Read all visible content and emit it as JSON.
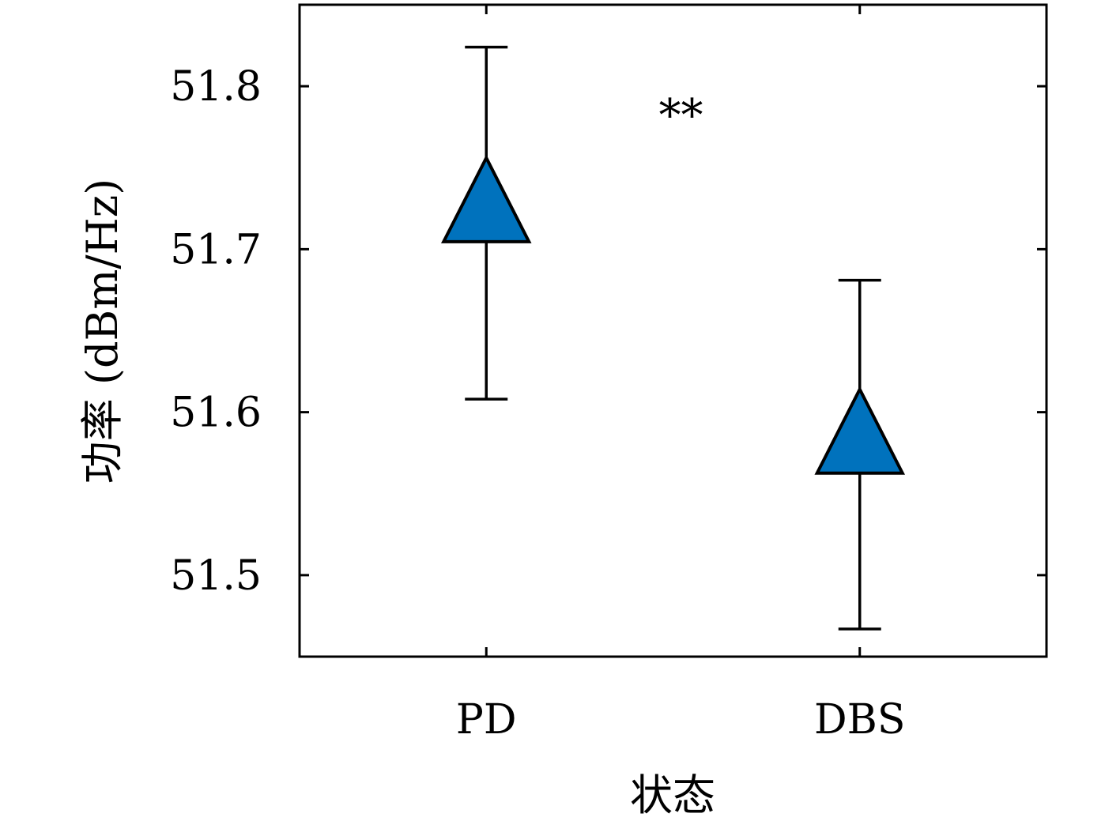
{
  "chart_data": {
    "type": "scatter",
    "categories": [
      "PD",
      "DBS"
    ],
    "series": [
      {
        "values": [
          51.725,
          51.583
        ],
        "error_low": [
          51.608,
          51.467
        ],
        "error_high": [
          51.824,
          51.681
        ],
        "marker": "triangle",
        "color": "#0072BD"
      }
    ],
    "xlabel": "状态",
    "ylabel": "功率 (dBm/Hz)",
    "yticks": [
      51.5,
      51.6,
      51.7,
      51.8
    ],
    "ytick_labels": [
      "51.5",
      "51.6",
      "51.7",
      "51.8"
    ],
    "ylim": [
      51.45,
      51.85
    ],
    "annotation": "**",
    "annotation_y": 51.79,
    "grid": false
  }
}
